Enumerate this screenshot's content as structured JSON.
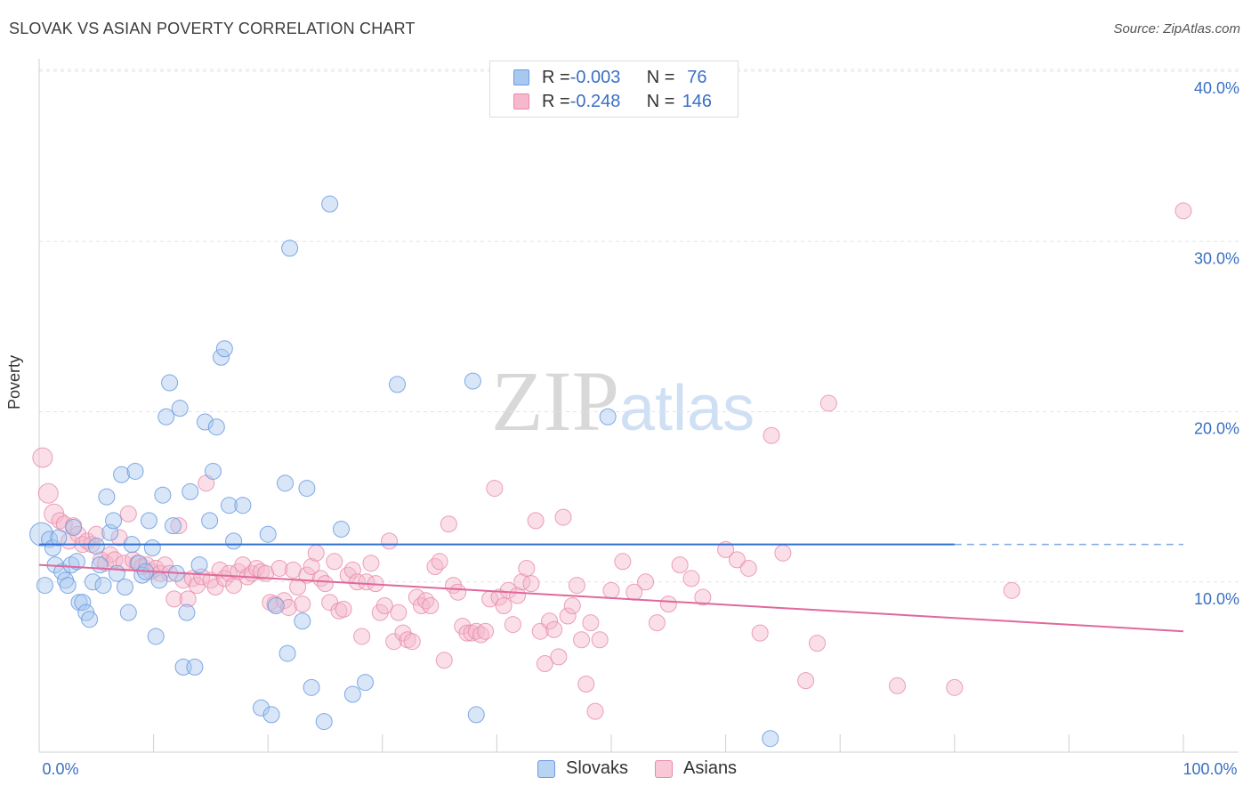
{
  "title": "SLOVAK VS ASIAN POVERTY CORRELATION CHART",
  "source": "Source: ZipAtlas.com",
  "watermark": {
    "zip": "ZIP",
    "atlas": "atlas"
  },
  "colors": {
    "slovak_fill": "#a8c8f0",
    "slovak_stroke": "#6a9be0",
    "slovak_line": "#2f6fd0",
    "asian_fill": "#f5b8cc",
    "asian_stroke": "#e889a8",
    "asian_line": "#e0689a",
    "axis_text": "#3a6fc4"
  },
  "legend": {
    "rows": [
      {
        "r_label": "R = ",
        "r_value": "-0.003",
        "n_label": "N = ",
        "n_value": " 76"
      },
      {
        "r_label": "R = ",
        "r_value": "-0.248",
        "n_label": "N = ",
        "n_value": "146"
      }
    ]
  },
  "bottom_legend": {
    "slovaks": "Slovaks",
    "asians": "Asians"
  },
  "chart_data": {
    "type": "scatter",
    "title": "SLOVAK VS ASIAN POVERTY CORRELATION CHART",
    "xlabel": "",
    "ylabel": "Poverty",
    "xlim": [
      0,
      100
    ],
    "ylim": [
      0,
      40
    ],
    "x_tick_labels": [
      "0.0%",
      "100.0%"
    ],
    "y_ticks": [
      10,
      20,
      30,
      40
    ],
    "y_tick_labels": [
      "10.0%",
      "20.0%",
      "30.0%",
      "40.0%"
    ],
    "grid": true,
    "series": [
      {
        "name": "Slovaks",
        "r": -0.003,
        "n": 76,
        "trend": {
          "x0": 0,
          "y0": 12.2,
          "x1": 80,
          "y1": 12.2,
          "dashed_to": 100
        },
        "points": [
          [
            0.2,
            12.8
          ],
          [
            0.5,
            9.8
          ],
          [
            0.9,
            12.5
          ],
          [
            1.2,
            12.0
          ],
          [
            1.4,
            11.0
          ],
          [
            1.7,
            12.6
          ],
          [
            2.0,
            10.6
          ],
          [
            2.3,
            10.1
          ],
          [
            2.5,
            9.8
          ],
          [
            2.8,
            11.0
          ],
          [
            3.0,
            13.2
          ],
          [
            3.3,
            11.2
          ],
          [
            3.5,
            8.8
          ],
          [
            3.8,
            8.8
          ],
          [
            4.1,
            8.2
          ],
          [
            4.4,
            7.8
          ],
          [
            4.7,
            10.0
          ],
          [
            5.0,
            12.1
          ],
          [
            5.3,
            11.0
          ],
          [
            5.6,
            9.8
          ],
          [
            5.9,
            15.0
          ],
          [
            6.2,
            12.9
          ],
          [
            6.5,
            13.6
          ],
          [
            6.8,
            10.5
          ],
          [
            7.2,
            16.3
          ],
          [
            7.5,
            9.7
          ],
          [
            7.8,
            8.2
          ],
          [
            8.1,
            12.2
          ],
          [
            8.4,
            16.5
          ],
          [
            8.7,
            11.1
          ],
          [
            9.0,
            10.4
          ],
          [
            9.3,
            10.6
          ],
          [
            9.6,
            13.6
          ],
          [
            9.9,
            12.0
          ],
          [
            10.2,
            6.8
          ],
          [
            10.5,
            10.1
          ],
          [
            10.8,
            15.1
          ],
          [
            11.1,
            19.7
          ],
          [
            11.4,
            21.7
          ],
          [
            11.7,
            13.3
          ],
          [
            12.0,
            10.5
          ],
          [
            12.3,
            20.2
          ],
          [
            12.6,
            5.0
          ],
          [
            12.9,
            8.2
          ],
          [
            13.2,
            15.3
          ],
          [
            13.6,
            5.0
          ],
          [
            14.0,
            11.0
          ],
          [
            14.5,
            19.4
          ],
          [
            14.9,
            13.6
          ],
          [
            15.2,
            16.5
          ],
          [
            15.5,
            19.1
          ],
          [
            15.9,
            23.2
          ],
          [
            16.2,
            23.7
          ],
          [
            16.6,
            14.5
          ],
          [
            17.0,
            12.4
          ],
          [
            17.8,
            14.5
          ],
          [
            19.4,
            2.6
          ],
          [
            20.0,
            12.8
          ],
          [
            20.3,
            2.2
          ],
          [
            20.7,
            8.6
          ],
          [
            21.5,
            15.8
          ],
          [
            21.7,
            5.8
          ],
          [
            21.9,
            29.6
          ],
          [
            23.0,
            7.7
          ],
          [
            23.4,
            15.5
          ],
          [
            23.8,
            3.8
          ],
          [
            24.9,
            1.8
          ],
          [
            25.4,
            32.2
          ],
          [
            26.4,
            13.1
          ],
          [
            27.4,
            3.4
          ],
          [
            28.5,
            4.1
          ],
          [
            31.3,
            21.6
          ],
          [
            37.9,
            21.8
          ],
          [
            38.2,
            2.2
          ],
          [
            49.7,
            19.7
          ],
          [
            63.9,
            0.8
          ]
        ]
      },
      {
        "name": "Asians",
        "r": -0.248,
        "n": 146,
        "trend": {
          "x0": 0,
          "y0": 11.0,
          "x1": 100,
          "y1": 7.1
        },
        "points": [
          [
            0.3,
            17.3
          ],
          [
            0.8,
            15.2
          ],
          [
            1.3,
            14.0
          ],
          [
            1.8,
            13.6
          ],
          [
            2.2,
            13.4
          ],
          [
            2.6,
            12.4
          ],
          [
            3.0,
            13.3
          ],
          [
            3.4,
            12.8
          ],
          [
            3.8,
            12.2
          ],
          [
            4.2,
            12.4
          ],
          [
            4.6,
            12.2
          ],
          [
            5.0,
            12.8
          ],
          [
            5.4,
            11.3
          ],
          [
            5.8,
            11.1
          ],
          [
            6.2,
            11.6
          ],
          [
            6.6,
            11.3
          ],
          [
            7.0,
            12.6
          ],
          [
            7.4,
            11.1
          ],
          [
            7.8,
            14.0
          ],
          [
            8.2,
            11.3
          ],
          [
            8.6,
            11.1
          ],
          [
            9.0,
            10.9
          ],
          [
            9.4,
            11.0
          ],
          [
            9.8,
            10.6
          ],
          [
            10.2,
            10.8
          ],
          [
            10.6,
            10.5
          ],
          [
            11.0,
            11.0
          ],
          [
            11.4,
            10.5
          ],
          [
            11.8,
            9.0
          ],
          [
            12.2,
            13.3
          ],
          [
            12.6,
            10.1
          ],
          [
            13.0,
            9.0
          ],
          [
            13.4,
            10.2
          ],
          [
            13.8,
            9.8
          ],
          [
            14.2,
            10.3
          ],
          [
            14.6,
            15.8
          ],
          [
            15.0,
            10.1
          ],
          [
            15.4,
            9.7
          ],
          [
            15.8,
            10.7
          ],
          [
            16.2,
            10.2
          ],
          [
            16.6,
            10.5
          ],
          [
            17.0,
            9.8
          ],
          [
            17.4,
            10.6
          ],
          [
            17.8,
            11.0
          ],
          [
            18.2,
            10.3
          ],
          [
            18.6,
            10.5
          ],
          [
            19.0,
            10.8
          ],
          [
            19.4,
            10.6
          ],
          [
            19.8,
            10.5
          ],
          [
            20.2,
            8.8
          ],
          [
            20.6,
            8.7
          ],
          [
            21.0,
            10.8
          ],
          [
            21.4,
            8.9
          ],
          [
            21.8,
            8.5
          ],
          [
            22.2,
            10.7
          ],
          [
            22.6,
            9.7
          ],
          [
            23.0,
            8.7
          ],
          [
            23.4,
            10.4
          ],
          [
            23.8,
            10.9
          ],
          [
            24.2,
            11.7
          ],
          [
            24.6,
            10.2
          ],
          [
            25.0,
            9.9
          ],
          [
            25.4,
            8.8
          ],
          [
            25.8,
            11.2
          ],
          [
            26.2,
            8.3
          ],
          [
            26.6,
            8.4
          ],
          [
            27.0,
            10.4
          ],
          [
            27.4,
            10.7
          ],
          [
            27.8,
            10.0
          ],
          [
            28.2,
            6.8
          ],
          [
            28.6,
            10.0
          ],
          [
            29.0,
            11.1
          ],
          [
            29.4,
            9.9
          ],
          [
            29.8,
            8.2
          ],
          [
            30.2,
            8.6
          ],
          [
            30.6,
            12.4
          ],
          [
            31.0,
            6.5
          ],
          [
            31.4,
            8.2
          ],
          [
            31.8,
            7.0
          ],
          [
            32.2,
            6.6
          ],
          [
            32.6,
            6.5
          ],
          [
            33.0,
            9.1
          ],
          [
            33.4,
            8.6
          ],
          [
            33.8,
            8.9
          ],
          [
            34.2,
            8.6
          ],
          [
            34.6,
            10.9
          ],
          [
            35.0,
            11.2
          ],
          [
            35.4,
            5.4
          ],
          [
            35.8,
            13.4
          ],
          [
            36.2,
            9.8
          ],
          [
            36.6,
            9.4
          ],
          [
            37.0,
            7.4
          ],
          [
            37.4,
            7.0
          ],
          [
            37.8,
            7.0
          ],
          [
            38.2,
            7.1
          ],
          [
            38.6,
            6.9
          ],
          [
            39.0,
            7.1
          ],
          [
            39.4,
            9.0
          ],
          [
            39.8,
            15.5
          ],
          [
            40.2,
            9.1
          ],
          [
            40.6,
            8.6
          ],
          [
            41.0,
            9.5
          ],
          [
            41.4,
            7.5
          ],
          [
            41.8,
            9.2
          ],
          [
            42.2,
            10.0
          ],
          [
            42.6,
            10.8
          ],
          [
            43.0,
            9.9
          ],
          [
            43.4,
            13.6
          ],
          [
            43.8,
            7.1
          ],
          [
            44.2,
            5.2
          ],
          [
            44.6,
            7.7
          ],
          [
            45.0,
            7.2
          ],
          [
            45.4,
            5.6
          ],
          [
            45.8,
            13.8
          ],
          [
            46.2,
            8.0
          ],
          [
            46.6,
            8.6
          ],
          [
            47.0,
            9.8
          ],
          [
            47.4,
            6.6
          ],
          [
            47.8,
            4.0
          ],
          [
            48.2,
            7.6
          ],
          [
            48.6,
            2.4
          ],
          [
            49.0,
            6.6
          ],
          [
            50.0,
            9.5
          ],
          [
            51.0,
            11.2
          ],
          [
            52.0,
            9.4
          ],
          [
            53.0,
            10.0
          ],
          [
            54.0,
            7.6
          ],
          [
            55.0,
            8.7
          ],
          [
            56.0,
            11.0
          ],
          [
            57.0,
            10.2
          ],
          [
            58.0,
            9.1
          ],
          [
            60.0,
            11.9
          ],
          [
            61.0,
            11.3
          ],
          [
            62.0,
            10.8
          ],
          [
            63.0,
            7.0
          ],
          [
            64.0,
            18.6
          ],
          [
            65.0,
            11.7
          ],
          [
            67.0,
            4.2
          ],
          [
            68.0,
            6.4
          ],
          [
            69.0,
            20.5
          ],
          [
            75.0,
            3.9
          ],
          [
            80.0,
            3.8
          ],
          [
            85.0,
            9.5
          ],
          [
            100.0,
            31.8
          ]
        ]
      }
    ]
  }
}
